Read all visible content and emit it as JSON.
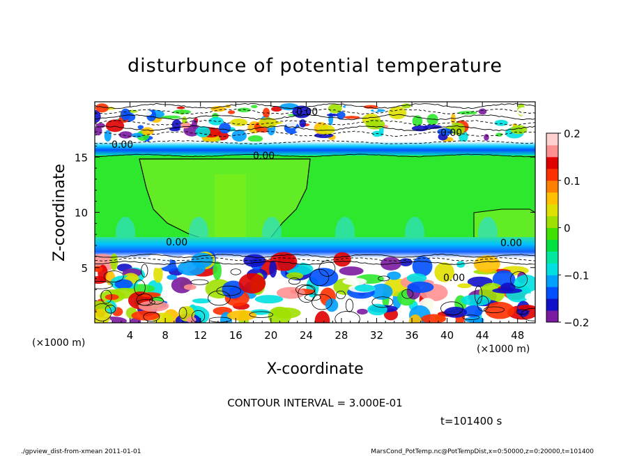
{
  "chart_data": {
    "type": "heatmap",
    "title": "disturbunce of potential temperature",
    "xlabel": "X-coordinate",
    "ylabel": "Z-coordinate",
    "x_unit_left": "(×1000 m)",
    "x_unit_right": "(×1000 m)",
    "x_ticks": [
      4,
      8,
      12,
      16,
      20,
      24,
      28,
      32,
      36,
      40,
      44,
      48
    ],
    "y_ticks": [
      5,
      10,
      15
    ],
    "xlim": [
      0,
      50
    ],
    "ylim": [
      0,
      20
    ],
    "colorbar": {
      "range": [
        -0.2,
        0.2
      ],
      "ticks": [
        {
          "value": 0.2,
          "label": "0.2"
        },
        {
          "value": 0.1,
          "label": "0.1"
        },
        {
          "value": 0,
          "label": "0"
        },
        {
          "value": -0.1,
          "label": "−0.1"
        },
        {
          "value": -0.2,
          "label": "−0.2"
        }
      ],
      "colors": [
        "#7a1aa0",
        "#1010c8",
        "#0050ff",
        "#00a0ff",
        "#00e0e0",
        "#00e8a0",
        "#00e040",
        "#40e000",
        "#a0e000",
        "#e0e000",
        "#ffc000",
        "#ff8000",
        "#ff3000",
        "#e00000",
        "#ff9090",
        "#ffd0d0"
      ]
    },
    "contour_labels": [
      "0.00",
      "0.00",
      "0.00",
      "0.00",
      "0.00",
      "0.00",
      "0.00"
    ],
    "contour_interval_text": "CONTOUR INTERVAL = 3.000E-01",
    "time_text": "t=101400 s"
  },
  "footer": {
    "left": "./gpview_dist-from-xmean 2011-01-01",
    "right": "MarsCond_PotTemp.nc@PotTempDist,x=0:50000,z=0:20000,t=101400"
  },
  "colors": {
    "zero_green": "#2ee82e",
    "inner_green": "#70ee20",
    "band_blue": "#1060ff"
  }
}
